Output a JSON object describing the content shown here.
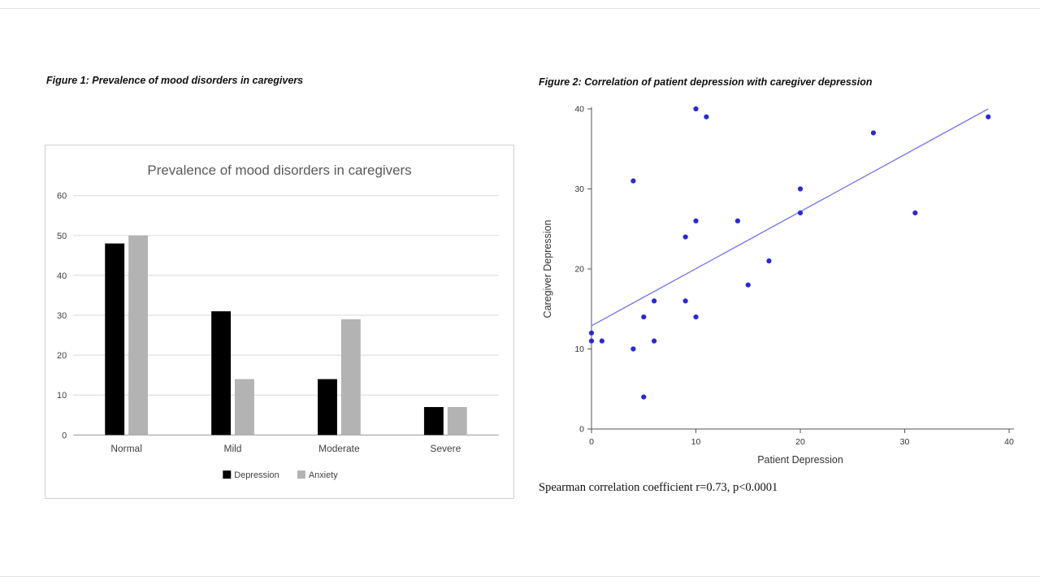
{
  "figure1": {
    "caption": "Figure 1: Prevalence of mood disorders in caregivers"
  },
  "figure2": {
    "caption": "Figure 2: Correlation of patient depression with caregiver depression",
    "footnote": "Spearman correlation coefficient r=0.73, p<0.0001"
  },
  "chart_data": [
    {
      "type": "bar",
      "title": "Prevalence of mood disorders in caregivers",
      "categories": [
        "Normal",
        "Mild",
        "Moderate",
        "Severe"
      ],
      "series": [
        {
          "name": "Depression",
          "color": "#000000",
          "values": [
            48,
            31,
            14,
            7
          ]
        },
        {
          "name": "Anxiety",
          "color": "#b3b3b3",
          "values": [
            50,
            14,
            29,
            7
          ]
        }
      ],
      "ylim": [
        0,
        60
      ],
      "yticks": [
        0,
        10,
        20,
        30,
        40,
        50,
        60
      ],
      "grid": true,
      "legend_position": "bottom",
      "title_color": "#595959",
      "axis_text_color": "#404040"
    },
    {
      "type": "scatter",
      "title": "",
      "xlabel": "Patient Depression",
      "ylabel": "Caregiver Depression",
      "xlim": [
        0,
        40
      ],
      "ylim": [
        0,
        40
      ],
      "xticks": [
        0,
        10,
        20,
        30,
        40
      ],
      "yticks": [
        0,
        10,
        20,
        30,
        40
      ],
      "point_color": "#2a2ad0",
      "line_color": "#7a7af0",
      "points": [
        [
          0,
          12
        ],
        [
          0,
          11
        ],
        [
          1,
          11
        ],
        [
          4,
          31
        ],
        [
          4,
          10
        ],
        [
          5,
          14
        ],
        [
          5,
          4
        ],
        [
          6,
          16
        ],
        [
          6,
          11
        ],
        [
          9,
          24
        ],
        [
          9,
          16
        ],
        [
          10,
          40
        ],
        [
          10,
          26
        ],
        [
          10,
          14
        ],
        [
          11,
          39
        ],
        [
          14,
          26
        ],
        [
          15,
          18
        ],
        [
          17,
          21
        ],
        [
          20,
          30
        ],
        [
          20,
          27
        ],
        [
          27,
          37
        ],
        [
          31,
          27
        ],
        [
          38,
          39
        ]
      ],
      "trendline": {
        "x1": 0,
        "y1": 12.9,
        "x2": 38,
        "y2": 40
      },
      "annotation": "Spearman correlation coefficient r=0.73, p<0.0001"
    }
  ]
}
